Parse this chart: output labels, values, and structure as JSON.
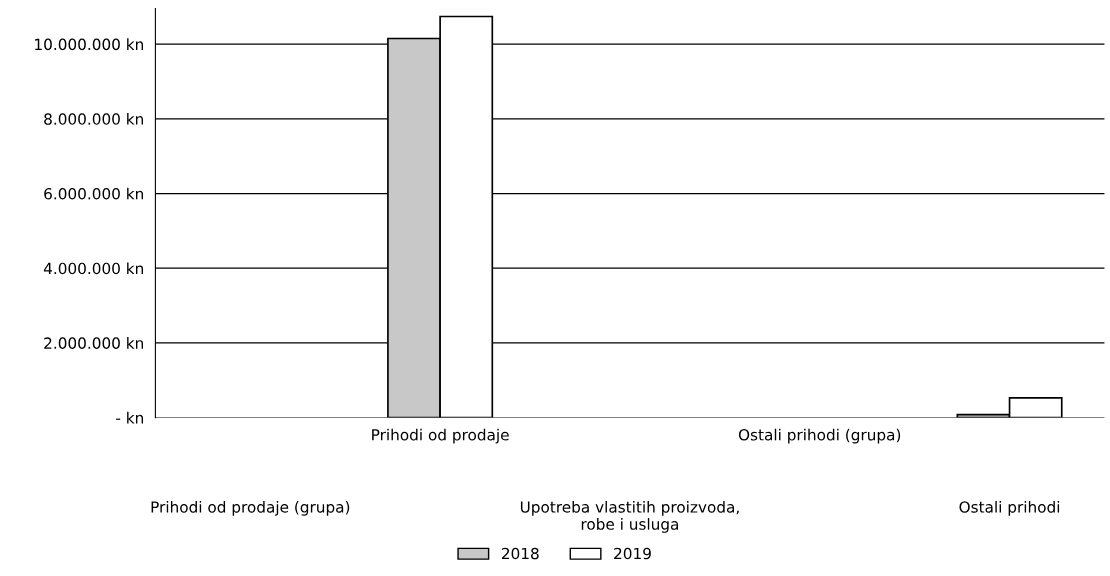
{
  "chart_data": {
    "type": "bar",
    "categories": [
      "Prihodi od prodaje (grupa)",
      "Prihodi od prodaje",
      "Upotreba vlastitih proizvoda,\nrobe i usluga",
      "Ostali prihodi (grupa)",
      "Ostali prihodi"
    ],
    "series": [
      {
        "name": "2018",
        "color": "#c8c8c8",
        "values": [
          null,
          10150000,
          null,
          null,
          80000
        ]
      },
      {
        "name": "2019",
        "color": "#ffffff",
        "values": [
          null,
          10740000,
          null,
          null,
          530000
        ]
      }
    ],
    "ylim": [
      0,
      10950000
    ],
    "yticks": [
      {
        "value": 0,
        "label": "- kn"
      },
      {
        "value": 2000000,
        "label": "2.000.000 kn"
      },
      {
        "value": 4000000,
        "label": "4.000.000 kn"
      },
      {
        "value": 6000000,
        "label": "6.000.000 kn"
      },
      {
        "value": 8000000,
        "label": "8.000.000 kn"
      },
      {
        "value": 10000000,
        "label": "10.000.000 kn"
      }
    ],
    "grid": "y",
    "legend": "bottom"
  }
}
